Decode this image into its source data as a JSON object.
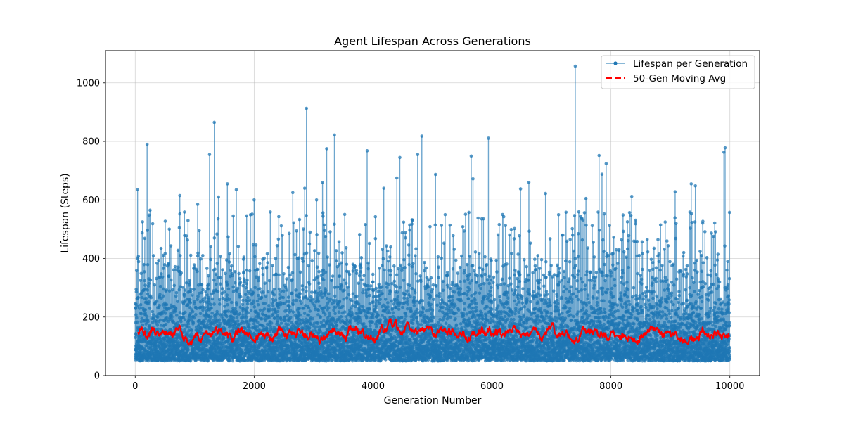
{
  "chart_data": {
    "type": "line",
    "title": "Agent Lifespan Across Generations",
    "xlabel": "Generation Number",
    "ylabel": "Lifespan (Steps)",
    "xlim": [
      -500,
      10500
    ],
    "ylim": [
      0,
      1110
    ],
    "xticks": [
      0,
      2000,
      4000,
      6000,
      8000,
      10000
    ],
    "yticks": [
      0,
      200,
      400,
      600,
      800,
      1000
    ],
    "grid": true,
    "legend_position": "top-right",
    "colors": {
      "lifespan": "#1f77b4",
      "moving_avg": "#ff0000"
    },
    "series": [
      {
        "name": "Lifespan per Generation",
        "style": "line-with-markers",
        "points": 10000,
        "min": 50,
        "max": 1057,
        "peaks": [
          {
            "x": 40,
            "y": 635
          },
          {
            "x": 200,
            "y": 790
          },
          {
            "x": 250,
            "y": 565
          },
          {
            "x": 750,
            "y": 615
          },
          {
            "x": 1050,
            "y": 585
          },
          {
            "x": 1250,
            "y": 755
          },
          {
            "x": 1330,
            "y": 865
          },
          {
            "x": 1400,
            "y": 610
          },
          {
            "x": 1550,
            "y": 655
          },
          {
            "x": 1700,
            "y": 635
          },
          {
            "x": 2000,
            "y": 600
          },
          {
            "x": 2650,
            "y": 625
          },
          {
            "x": 2850,
            "y": 640
          },
          {
            "x": 2880,
            "y": 913
          },
          {
            "x": 3050,
            "y": 600
          },
          {
            "x": 3150,
            "y": 660
          },
          {
            "x": 3220,
            "y": 775
          },
          {
            "x": 3350,
            "y": 822
          },
          {
            "x": 3900,
            "y": 768
          },
          {
            "x": 4180,
            "y": 640
          },
          {
            "x": 4400,
            "y": 675
          },
          {
            "x": 4450,
            "y": 745
          },
          {
            "x": 4750,
            "y": 755
          },
          {
            "x": 4820,
            "y": 818
          },
          {
            "x": 5050,
            "y": 687
          },
          {
            "x": 5650,
            "y": 750
          },
          {
            "x": 5680,
            "y": 672
          },
          {
            "x": 5940,
            "y": 811
          },
          {
            "x": 6480,
            "y": 638
          },
          {
            "x": 6620,
            "y": 660
          },
          {
            "x": 6900,
            "y": 622
          },
          {
            "x": 7400,
            "y": 1057
          },
          {
            "x": 7580,
            "y": 605
          },
          {
            "x": 7800,
            "y": 752
          },
          {
            "x": 7850,
            "y": 688
          },
          {
            "x": 7920,
            "y": 724
          },
          {
            "x": 8350,
            "y": 612
          },
          {
            "x": 9080,
            "y": 628
          },
          {
            "x": 9350,
            "y": 655
          },
          {
            "x": 9420,
            "y": 648
          },
          {
            "x": 9900,
            "y": 763
          },
          {
            "x": 9920,
            "y": 778
          }
        ]
      },
      {
        "name": "50-Gen Moving Avg",
        "style": "dashed",
        "window": 50,
        "mean": 145,
        "range": [
          105,
          195
        ],
        "x_start": 49,
        "x_end": 9999
      }
    ]
  }
}
